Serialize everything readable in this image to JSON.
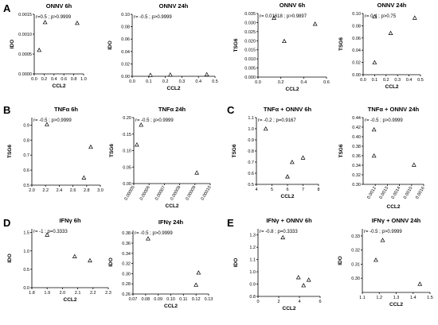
{
  "figure": {
    "letters": [
      "A",
      "B",
      "C",
      "D",
      "E"
    ]
  },
  "chart_data": [
    {
      "type": "scatter",
      "title": "ONNV 6h",
      "stat": "r=0.5 ; p>0.9999",
      "xlabel": "CCL2",
      "ylabel": "IDO",
      "xlim": [
        0,
        1.0
      ],
      "ylim": [
        0,
        0.0015
      ],
      "xticks": [
        "0.0",
        "0.2",
        "0.4",
        "0.6",
        "0.8",
        "1.0"
      ],
      "xtick_values": [
        0,
        0.2,
        0.4,
        0.6,
        0.8,
        1.0
      ],
      "yticks": [
        "0.0000",
        "0.0005",
        "0.0010",
        "0.0015"
      ],
      "ytick_values": [
        0,
        0.0005,
        0.001,
        0.0015
      ],
      "points": [
        {
          "x": 0.1,
          "y": 0.0006
        },
        {
          "x": 0.22,
          "y": 0.0013
        },
        {
          "x": 0.87,
          "y": 0.00128
        }
      ]
    },
    {
      "type": "scatter",
      "title": "ONNV 24h",
      "stat": "r= -0.5 ; p>0.9999",
      "xlabel": "CCL2",
      "ylabel": "IDO",
      "xlim": [
        0,
        0.5
      ],
      "ylim": [
        0,
        0.1
      ],
      "xticks": [
        "0.0",
        "0.1",
        "0.2",
        "0.3",
        "0.4",
        "0.5"
      ],
      "xtick_values": [
        0,
        0.1,
        0.2,
        0.3,
        0.4,
        0.5
      ],
      "yticks": [
        "0.00",
        "0.02",
        "0.04",
        "0.06",
        "0.08",
        "0.10"
      ],
      "ytick_values": [
        0,
        0.02,
        0.04,
        0.06,
        0.08,
        0.1
      ],
      "points": [
        {
          "x": 0.11,
          "y": 0.002
        },
        {
          "x": 0.23,
          "y": 0.0025
        },
        {
          "x": 0.45,
          "y": 0.003
        }
      ]
    },
    {
      "type": "scatter",
      "title": "ONNV 6h",
      "stat": "r= 0.01618 ; p>0.9897",
      "xlabel": "CCL2",
      "ylabel": "TSG6",
      "xlim": [
        0,
        0.6
      ],
      "ylim": [
        0,
        0.035
      ],
      "xticks": [
        "0.0",
        "0.2",
        "0.4",
        "0.6"
      ],
      "xtick_values": [
        0,
        0.2,
        0.4,
        0.6
      ],
      "yticks": [
        "0.000",
        "0.005",
        "0.010",
        "0.015",
        "0.020",
        "0.025",
        "0.030",
        "0.035"
      ],
      "ytick_values": [
        0,
        0.005,
        0.01,
        0.015,
        0.02,
        0.025,
        0.03,
        0.035
      ],
      "points": [
        {
          "x": 0.14,
          "y": 0.0325
        },
        {
          "x": 0.23,
          "y": 0.0198
        },
        {
          "x": 0.5,
          "y": 0.0293
        }
      ]
    },
    {
      "type": "scatter",
      "title": "ONNV 24h",
      "stat": "r= 0.4 ; p>0.75",
      "xlabel": "CCL2",
      "ylabel": "TSG6",
      "xlim": [
        0,
        0.5
      ],
      "ylim": [
        0,
        0.1
      ],
      "xticks": [
        "0.0",
        "0.1",
        "0.2",
        "0.3",
        "0.4",
        "0.5"
      ],
      "xtick_values": [
        0,
        0.1,
        0.2,
        0.3,
        0.4,
        0.5
      ],
      "yticks": [
        "0.00",
        "0.02",
        "0.04",
        "0.06",
        "0.08",
        "0.10"
      ],
      "ytick_values": [
        0,
        0.02,
        0.04,
        0.06,
        0.08,
        0.1
      ],
      "points": [
        {
          "x": 0.1,
          "y": 0.02
        },
        {
          "x": 0.1,
          "y": 0.095
        },
        {
          "x": 0.24,
          "y": 0.068
        },
        {
          "x": 0.45,
          "y": 0.093
        }
      ]
    },
    {
      "type": "scatter",
      "title": "TNFα 6h",
      "stat": "r= -0.5 ; p>0.9999",
      "xlabel": "",
      "ylabel": "TSG6",
      "xlim": [
        2.0,
        3.0
      ],
      "ylim": [
        0.5,
        0.95
      ],
      "xticks": [
        "2.0",
        "2.2",
        "2.4",
        "2.6",
        "2.8",
        "3.0"
      ],
      "xtick_values": [
        2.0,
        2.2,
        2.4,
        2.6,
        2.8,
        3.0
      ],
      "yticks": [
        "0.5",
        "0.6",
        "0.7",
        "0.8",
        "0.9"
      ],
      "ytick_values": [
        0.5,
        0.6,
        0.7,
        0.8,
        0.9
      ],
      "points": [
        {
          "x": 2.22,
          "y": 0.905
        },
        {
          "x": 2.76,
          "y": 0.55
        },
        {
          "x": 2.86,
          "y": 0.755
        }
      ]
    },
    {
      "type": "scatter",
      "title": "TNFα 24h",
      "stat": "r= -0.5 ; p>0.9999",
      "xlabel": "CCL2",
      "ylabel": "TSG6",
      "xlim": [
        5e-05,
        0.0001
      ],
      "ylim": [
        0,
        0.2
      ],
      "xticks": [
        "0.00005",
        "0.00006",
        "0.00007",
        "0.00008",
        "0.00009",
        "0.00010"
      ],
      "xtick_values": [
        5e-05,
        6e-05,
        7e-05,
        8e-05,
        9e-05,
        0.0001
      ],
      "yticks": [
        "0.00",
        "0.05",
        "0.10",
        "0.15",
        "0.20"
      ],
      "ytick_values": [
        0,
        0.05,
        0.1,
        0.15,
        0.2
      ],
      "points": [
        {
          "x": 5.2e-05,
          "y": 0.118
        },
        {
          "x": 5.48e-05,
          "y": 0.178
        },
        {
          "x": 9.12e-05,
          "y": 0.033
        }
      ]
    },
    {
      "type": "scatter",
      "title": "TNFα + ONNV 6h",
      "stat": "r= -0.2 ; p=0.9167",
      "xlabel": "CCL2",
      "ylabel": "TSG6",
      "xlim": [
        4,
        8
      ],
      "ylim": [
        0.5,
        1.1
      ],
      "xticks": [
        "4",
        "5",
        "6",
        "7",
        "8"
      ],
      "xtick_values": [
        4,
        5,
        6,
        7,
        8
      ],
      "yticks": [
        "0.5",
        "0.6",
        "0.7",
        "0.8",
        "0.9",
        "1.0",
        "1.1"
      ],
      "ytick_values": [
        0.5,
        0.6,
        0.7,
        0.8,
        0.9,
        1.0,
        1.1
      ],
      "points": [
        {
          "x": 4.6,
          "y": 1.0
        },
        {
          "x": 6.0,
          "y": 0.57
        },
        {
          "x": 6.3,
          "y": 0.7
        },
        {
          "x": 7.0,
          "y": 0.74
        }
      ]
    },
    {
      "type": "scatter",
      "title": "TNFα + ONNV 24h",
      "stat": "r= -0.5 ; p>0.9999",
      "xlabel": "CCL2",
      "ylabel": "TSG6",
      "xlim": [
        0.0011,
        0.0016
      ],
      "ylim": [
        0.3,
        0.44
      ],
      "xticks": [
        "0.0012",
        "0.0013",
        "0.0014",
        "0.0015",
        "0.0016"
      ],
      "xtick_values": [
        0.0012,
        0.0013,
        0.0014,
        0.0015,
        0.0016
      ],
      "yticks": [
        "0.30",
        "0.32",
        "0.34",
        "0.36",
        "0.38",
        "0.40",
        "0.42",
        "0.44"
      ],
      "ytick_values": [
        0.3,
        0.32,
        0.34,
        0.36,
        0.38,
        0.4,
        0.42,
        0.44
      ],
      "points": [
        {
          "x": 0.00119,
          "y": 0.415
        },
        {
          "x": 0.00119,
          "y": 0.36
        },
        {
          "x": 0.00152,
          "y": 0.341
        }
      ]
    },
    {
      "type": "scatter",
      "title": "IFNγ 6h",
      "stat": "r= -1 ; p=0.3333",
      "xlabel": "CCL2",
      "ylabel": "IDO",
      "xlim": [
        1.8,
        2.3
      ],
      "ylim": [
        0,
        1.6
      ],
      "xticks": [
        "1.8",
        "1.9",
        "2.0",
        "2.1",
        "2.2",
        "2.3"
      ],
      "xtick_values": [
        1.8,
        1.9,
        2.0,
        2.1,
        2.2,
        2.3
      ],
      "yticks": [
        "0.0",
        "0.5",
        "1.0",
        "1.5"
      ],
      "ytick_values": [
        0,
        0.5,
        1.0,
        1.5
      ],
      "points": [
        {
          "x": 1.9,
          "y": 1.44
        },
        {
          "x": 2.08,
          "y": 0.85
        },
        {
          "x": 2.18,
          "y": 0.74
        }
      ]
    },
    {
      "type": "scatter",
      "title": "IFNγ 24h",
      "stat": "r= -0.5 ; p>0.9999",
      "xlabel": "CCL2",
      "ylabel": "IDO",
      "xlim": [
        0.07,
        0.13
      ],
      "ylim": [
        0.26,
        0.385
      ],
      "xticks": [
        "0.07",
        "0.08",
        "0.09",
        "0.10",
        "0.11",
        "0.12",
        "0.13"
      ],
      "xtick_values": [
        0.07,
        0.08,
        0.09,
        0.1,
        0.11,
        0.12,
        0.13
      ],
      "yticks": [
        "0.26",
        "0.28",
        "0.30",
        "0.32",
        "0.34",
        "0.36",
        "0.38"
      ],
      "ytick_values": [
        0.26,
        0.28,
        0.3,
        0.32,
        0.34,
        0.36,
        0.38
      ],
      "points": [
        {
          "x": 0.082,
          "y": 0.369
        },
        {
          "x": 0.12,
          "y": 0.278
        },
        {
          "x": 0.122,
          "y": 0.302
        }
      ]
    },
    {
      "type": "scatter",
      "title": "IFNγ + ONNV 6h",
      "stat": "r= -0.8 ; p=0.3333",
      "xlabel": "CCL2",
      "ylabel": "IDO",
      "xlim": [
        0,
        6
      ],
      "ylim": [
        0.8,
        1.35
      ],
      "xticks": [
        "0",
        "2",
        "4",
        "6"
      ],
      "xtick_values": [
        0,
        2,
        4,
        6
      ],
      "yticks": [
        "0.8",
        "0.9",
        "1.0",
        "1.1",
        "1.2",
        "1.3"
      ],
      "ytick_values": [
        0.8,
        0.9,
        1.0,
        1.1,
        1.2,
        1.3
      ],
      "points": [
        {
          "x": 2.4,
          "y": 1.28
        },
        {
          "x": 3.9,
          "y": 0.955
        },
        {
          "x": 4.4,
          "y": 0.89
        },
        {
          "x": 4.9,
          "y": 0.935
        }
      ]
    },
    {
      "type": "scatter",
      "title": "IFNγ + ONNV 24h",
      "stat": "r= -0.5 ; p>0.9999",
      "xlabel": "CCL2",
      "ylabel": "IDO",
      "xlim": [
        1.1,
        1.5
      ],
      "ylim": [
        0.29,
        0.335
      ],
      "xticks": [
        "1.1",
        "1.2",
        "1.3",
        "1.4",
        "1.5"
      ],
      "xtick_values": [
        1.1,
        1.2,
        1.3,
        1.4,
        1.5
      ],
      "yticks": [
        "0.30",
        "0.31",
        "0.32",
        "0.33"
      ],
      "ytick_values": [
        0.3,
        0.31,
        0.32,
        0.33
      ],
      "points": [
        {
          "x": 1.18,
          "y": 0.313
        },
        {
          "x": 1.22,
          "y": 0.327
        },
        {
          "x": 1.44,
          "y": 0.296
        }
      ]
    }
  ]
}
